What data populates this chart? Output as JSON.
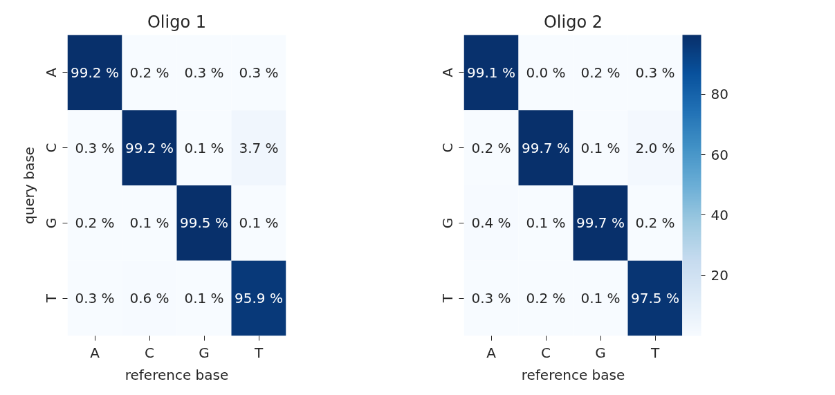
{
  "chart_data": [
    {
      "type": "heatmap",
      "title": "Oligo 1",
      "xlabel": "reference base",
      "ylabel": "query base",
      "categories": [
        "A",
        "C",
        "G",
        "T"
      ],
      "y_categories": [
        "A",
        "C",
        "G",
        "T"
      ],
      "cells": [
        [
          99.2,
          0.2,
          0.3,
          0.3
        ],
        [
          0.3,
          99.2,
          0.1,
          3.7
        ],
        [
          0.2,
          0.1,
          99.5,
          0.1
        ],
        [
          0.3,
          0.6,
          0.1,
          95.9
        ]
      ],
      "cell_labels": [
        [
          "99.2 %",
          "0.2 %",
          "0.3 %",
          "0.3 %"
        ],
        [
          "0.3 %",
          "99.2 %",
          "0.1 %",
          "3.7 %"
        ],
        [
          "0.2 %",
          "0.1 %",
          "99.5 %",
          "0.1 %"
        ],
        [
          "0.3 %",
          "0.6 %",
          "0.1 %",
          "95.9 %"
        ]
      ]
    },
    {
      "type": "heatmap",
      "title": "Oligo 2",
      "xlabel": "reference base",
      "categories": [
        "A",
        "C",
        "G",
        "T"
      ],
      "y_categories": [
        "A",
        "C",
        "G",
        "T"
      ],
      "cells": [
        [
          99.1,
          0.0,
          0.2,
          0.3
        ],
        [
          0.2,
          99.7,
          0.1,
          2.0
        ],
        [
          0.4,
          0.1,
          99.7,
          0.2
        ],
        [
          0.3,
          0.2,
          0.1,
          97.5
        ]
      ],
      "cell_labels": [
        [
          "99.1 %",
          "0.0 %",
          "0.2 %",
          "0.3 %"
        ],
        [
          "0.2 %",
          "99.7 %",
          "0.1 %",
          "2.0 %"
        ],
        [
          "0.4 %",
          "0.1 %",
          "99.7 %",
          "0.2 %"
        ],
        [
          "0.3 %",
          "0.2 %",
          "0.1 %",
          "97.5 %"
        ]
      ],
      "clim": [
        0.0,
        99.7
      ],
      "cticks": [
        20,
        40,
        60,
        80
      ]
    }
  ]
}
